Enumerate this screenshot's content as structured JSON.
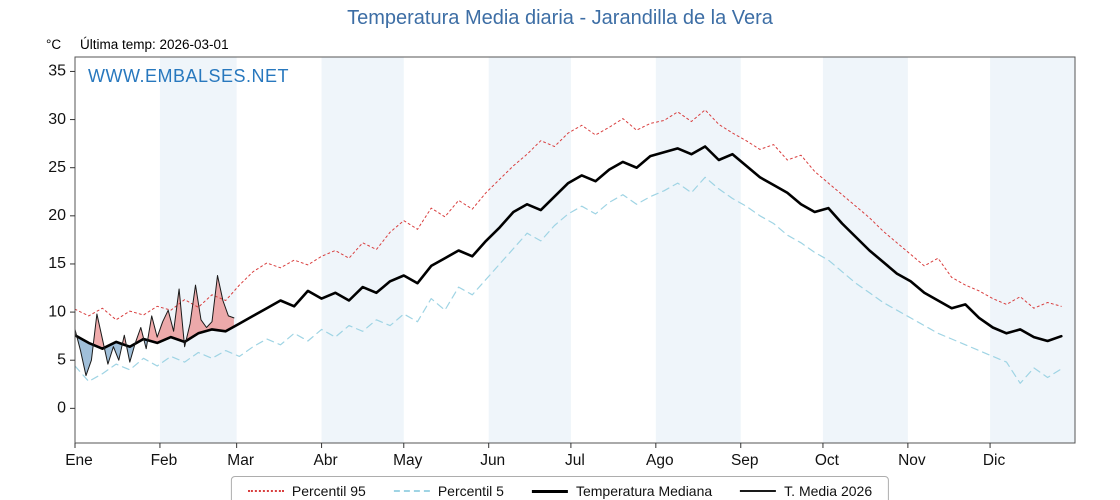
{
  "header": {
    "title": "Temperatura Media diaria - Jarandilla de la Vera",
    "y_unit_label": "°C",
    "last_temp_label": "Última temp: 2026-03-01",
    "watermark": "WWW.EMBALSES.NET"
  },
  "colors": {
    "title": "#3d6ea5",
    "watermark": "#2878be",
    "band": "#eff5fa",
    "frame": "#555555",
    "tick": "#333333",
    "tick_label": "#111111",
    "fill_above": "#e98080",
    "fill_below": "#6d9cc4"
  },
  "chart_data": {
    "type": "line",
    "title": "Temperatura Media diaria - Jarandilla de la Vera",
    "xlabel": "",
    "ylabel": "°C",
    "ylim": [
      -3.6,
      36.5
    ],
    "y_ticks": [
      0,
      5,
      10,
      15,
      20,
      25,
      30,
      35
    ],
    "month_labels": [
      "Ene",
      "Feb",
      "Mar",
      "Abr",
      "May",
      "Jun",
      "Jul",
      "Ago",
      "Sep",
      "Oct",
      "Nov",
      "Dic"
    ],
    "month_start_days": [
      1,
      32,
      60,
      91,
      121,
      152,
      182,
      213,
      244,
      274,
      305,
      335
    ],
    "days_in_year": 366,
    "legend_position": "bottom",
    "grid": false,
    "x_days": [
      1,
      6,
      11,
      16,
      21,
      26,
      31,
      36,
      41,
      46,
      51,
      56,
      61,
      66,
      71,
      76,
      81,
      86,
      91,
      96,
      101,
      106,
      111,
      116,
      121,
      126,
      131,
      136,
      141,
      146,
      151,
      156,
      161,
      166,
      171,
      176,
      181,
      186,
      191,
      196,
      201,
      206,
      211,
      216,
      221,
      226,
      231,
      236,
      241,
      246,
      251,
      256,
      261,
      266,
      271,
      276,
      281,
      286,
      291,
      296,
      301,
      306,
      311,
      316,
      321,
      326,
      331,
      336,
      341,
      346,
      351,
      356,
      361
    ],
    "series": [
      {
        "name": "Percentil 95",
        "color": "#d93f3f",
        "line_style": "dotted",
        "width": 1,
        "values": [
          10.3,
          9.6,
          10.4,
          9.2,
          10.1,
          9.7,
          10.6,
          10.2,
          11.3,
          10.5,
          11.8,
          11.2,
          12.8,
          14.2,
          15.1,
          14.6,
          15.4,
          14.9,
          15.8,
          16.4,
          15.6,
          17.2,
          16.5,
          18.3,
          19.5,
          18.6,
          20.8,
          19.9,
          21.6,
          20.7,
          22.4,
          23.8,
          25.2,
          26.4,
          27.8,
          27.2,
          28.6,
          29.4,
          28.4,
          29.2,
          30.1,
          28.9,
          29.6,
          29.9,
          30.8,
          29.8,
          31.0,
          29.5,
          28.6,
          27.8,
          26.9,
          27.4,
          25.8,
          26.3,
          24.6,
          23.4,
          22.2,
          21.0,
          19.8,
          18.4,
          17.2,
          16.0,
          14.8,
          15.6,
          13.6,
          12.8,
          12.2,
          11.4,
          10.8,
          11.6,
          10.4,
          11.0,
          10.6
        ]
      },
      {
        "name": "Percentil 5",
        "color": "#9fd4e4",
        "line_style": "dashed",
        "width": 1.2,
        "values": [
          4.4,
          2.8,
          3.6,
          4.6,
          4.0,
          5.2,
          4.4,
          5.4,
          4.8,
          5.8,
          5.2,
          6.0,
          5.4,
          6.4,
          7.2,
          6.6,
          7.8,
          7.0,
          8.2,
          7.4,
          8.6,
          8.0,
          9.2,
          8.6,
          9.8,
          9.0,
          11.4,
          10.2,
          12.6,
          11.8,
          13.4,
          15.0,
          16.6,
          18.2,
          17.4,
          19.0,
          20.2,
          21.0,
          20.2,
          21.4,
          22.2,
          21.2,
          22.0,
          22.6,
          23.4,
          22.4,
          24.0,
          22.8,
          21.8,
          21.0,
          20.0,
          19.2,
          18.0,
          17.2,
          16.2,
          15.4,
          14.2,
          13.0,
          12.0,
          11.0,
          10.2,
          9.4,
          8.6,
          7.8,
          7.2,
          6.6,
          6.0,
          5.4,
          4.8,
          2.6,
          4.2,
          3.2,
          4.1
        ]
      },
      {
        "name": "Temperatura Mediana",
        "color": "#000000",
        "line_style": "solid",
        "width": 2.6,
        "values": [
          7.6,
          6.8,
          6.2,
          6.9,
          6.4,
          7.2,
          6.8,
          7.4,
          6.9,
          7.8,
          8.2,
          8.0,
          8.8,
          9.6,
          10.4,
          11.2,
          10.6,
          12.2,
          11.4,
          12.0,
          11.2,
          12.6,
          12.0,
          13.2,
          13.8,
          13.0,
          14.8,
          15.6,
          16.4,
          15.8,
          17.4,
          18.8,
          20.4,
          21.2,
          20.6,
          22.0,
          23.4,
          24.2,
          23.6,
          24.8,
          25.6,
          25.0,
          26.2,
          26.6,
          27.0,
          26.4,
          27.2,
          25.8,
          26.4,
          25.2,
          24.0,
          23.2,
          22.4,
          21.2,
          20.4,
          20.8,
          19.2,
          17.8,
          16.4,
          15.2,
          14.0,
          13.2,
          12.0,
          11.2,
          10.4,
          10.8,
          9.4,
          8.4,
          7.8,
          8.2,
          7.4,
          7.0,
          7.5
        ]
      },
      {
        "name": "T. Media 2026",
        "color": "#1a1a1a",
        "line_style": "solid",
        "width": 1,
        "x": [
          1,
          3,
          5,
          7,
          9,
          11,
          13,
          15,
          17,
          19,
          21,
          23,
          25,
          27,
          29,
          31,
          33,
          35,
          37,
          39,
          41,
          43,
          45,
          47,
          49,
          51,
          53,
          55,
          57,
          59
        ],
        "values": [
          8.2,
          6.0,
          3.4,
          5.0,
          9.8,
          7.2,
          4.6,
          6.4,
          5.0,
          7.6,
          4.8,
          6.8,
          8.4,
          6.2,
          9.6,
          7.4,
          9.0,
          10.2,
          8.0,
          12.4,
          6.4,
          8.8,
          12.8,
          9.2,
          8.4,
          9.0,
          13.8,
          11.2,
          9.6,
          9.4
        ]
      }
    ]
  }
}
